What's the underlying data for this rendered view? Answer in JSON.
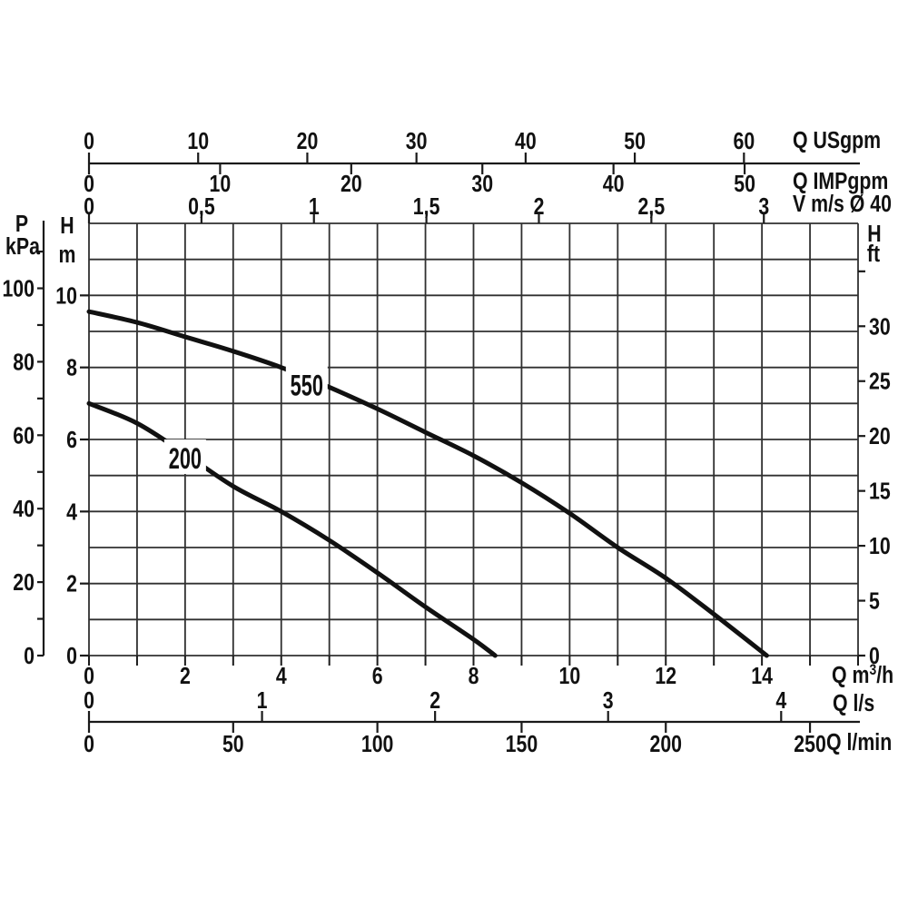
{
  "chart_data": {
    "type": "line",
    "title": "",
    "grid": true,
    "legend": "none",
    "colors": {
      "line": "#111111",
      "grid": "#303030",
      "axis": "#1a1a1a",
      "text": "#111111",
      "background": "#ffffff"
    },
    "curves": [
      {
        "name": "550",
        "label": "550",
        "label_q": 4.53,
        "label_h": 7.5,
        "points": [
          [
            0,
            9.55
          ],
          [
            1,
            9.25
          ],
          [
            2,
            8.85
          ],
          [
            3,
            8.45
          ],
          [
            4,
            8.0
          ],
          [
            5,
            7.45
          ],
          [
            6,
            6.85
          ],
          [
            7,
            6.2
          ],
          [
            8,
            5.55
          ],
          [
            9,
            4.8
          ],
          [
            10,
            3.95
          ],
          [
            11,
            3.0
          ],
          [
            12,
            2.15
          ],
          [
            13,
            1.15
          ],
          [
            14.1,
            0
          ]
        ]
      },
      {
        "name": "200",
        "label": "200",
        "label_q": 2.0,
        "label_h": 5.47,
        "points": [
          [
            0,
            7.0
          ],
          [
            1,
            6.45
          ],
          [
            2,
            5.6
          ],
          [
            3,
            4.7
          ],
          [
            4,
            4.0
          ],
          [
            5,
            3.2
          ],
          [
            6,
            2.3
          ],
          [
            7,
            1.35
          ],
          [
            8,
            0.45
          ],
          [
            8.45,
            0
          ]
        ]
      }
    ],
    "x_primary": {
      "title_pre": "Q m",
      "title_sup": "3",
      "title_post": "/h",
      "unit": "m3/h",
      "min": 0,
      "max": 16,
      "tick_step": 1,
      "labeled_ticks": [
        0,
        2,
        4,
        6,
        8,
        10,
        12,
        14
      ]
    },
    "y_primary": {
      "line1": "H",
      "line2": "m",
      "unit": "m",
      "min": 0,
      "max": 12,
      "grid_step": 1,
      "labeled_ticks": [
        0,
        2,
        4,
        6,
        8,
        10
      ]
    },
    "x_secondary": [
      {
        "title": "Q USgpm",
        "ticks": [
          0,
          10,
          20,
          30,
          40,
          50,
          60
        ],
        "m3h_per_unit": 0.2271
      },
      {
        "title": "Q IMPgpm",
        "ticks": [
          0,
          10,
          20,
          30,
          40,
          50
        ],
        "m3h_per_unit": 0.2728
      },
      {
        "title": "V m/s Ø 40",
        "ticks": [
          0,
          0.5,
          1,
          1.5,
          2,
          2.5,
          3
        ],
        "tick_labels": [
          "0",
          "0,5",
          "1",
          "1,5",
          "2",
          "2,5",
          "3"
        ],
        "m3h_per_unit": 4.68
      },
      {
        "title": "Q l/s",
        "ticks": [
          0,
          1,
          2,
          3,
          4
        ],
        "m3h_per_unit": 3.6
      },
      {
        "title": "Q l/min",
        "ticks": [
          0,
          50,
          100,
          150,
          200,
          250
        ],
        "m3h_per_unit": 0.06
      }
    ],
    "y_secondary": [
      {
        "line1": "P",
        "line2": "kPa",
        "labeled_ticks": [
          0,
          20,
          40,
          60,
          80,
          100
        ],
        "minor_ticks": [
          10,
          30,
          50,
          70,
          90,
          110
        ],
        "m_per_unit": 0.10197
      },
      {
        "line1": "H",
        "line2": "ft",
        "ticks": [
          0,
          5,
          10,
          15,
          20,
          25,
          30,
          35
        ],
        "labeled_ticks": [
          0,
          5,
          10,
          15,
          20,
          25,
          30
        ],
        "m_per_unit": 0.3048
      }
    ]
  }
}
